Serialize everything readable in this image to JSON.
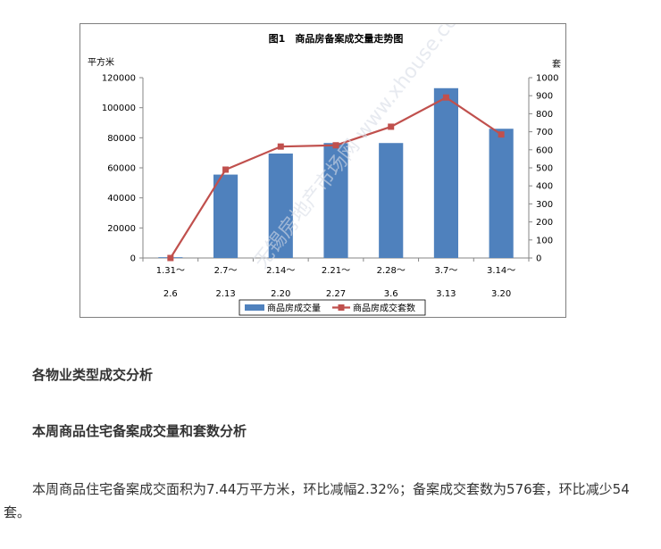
{
  "chart_data": {
    "type": "bar+line",
    "title": "图1　商品房备案成交量走势图",
    "y_left_unit": "平方米",
    "y_right_unit": "套",
    "y_left_ticks": [
      0,
      20000,
      40000,
      60000,
      80000,
      100000,
      120000
    ],
    "y_right_ticks": [
      0,
      100,
      200,
      300,
      400,
      500,
      600,
      700,
      800,
      900,
      1000
    ],
    "ylim_left": [
      0,
      120000
    ],
    "ylim_right": [
      0,
      1000
    ],
    "categories": [
      {
        "line1": "1.31～",
        "line2": "2.6"
      },
      {
        "line1": "2.7～",
        "line2": "2.13"
      },
      {
        "line1": "2.14～",
        "line2": "2.20"
      },
      {
        "line1": "2.21～",
        "line2": "2.27"
      },
      {
        "line1": "2.28～",
        "line2": "3.6"
      },
      {
        "line1": "3.7～",
        "line2": "3.13"
      },
      {
        "line1": "3.14～",
        "line2": "3.20"
      }
    ],
    "series": [
      {
        "name": "商品房成交量",
        "kind": "bar",
        "axis": "left",
        "color": "#4f81bd",
        "values": [
          500,
          55500,
          69500,
          76500,
          76500,
          113000,
          86000
        ]
      },
      {
        "name": "商品房成交套数",
        "kind": "line",
        "axis": "right",
        "color": "#c0504d",
        "values": [
          0,
          490,
          618,
          625,
          728,
          890,
          685
        ]
      }
    ],
    "legend_position": "bottom",
    "watermark": "无锡房地产市场网 www.xhouse.com"
  },
  "sections": {
    "heading1": "各物业类型成交分析",
    "heading2": "本周商品住宅备案成交量和套数分析",
    "paragraph": "本周商品住宅备案成交面积为7.44万平方米，环比减幅2.32%；备案成交套数为576套，环比减少54",
    "paragraph_tail": "套。"
  }
}
